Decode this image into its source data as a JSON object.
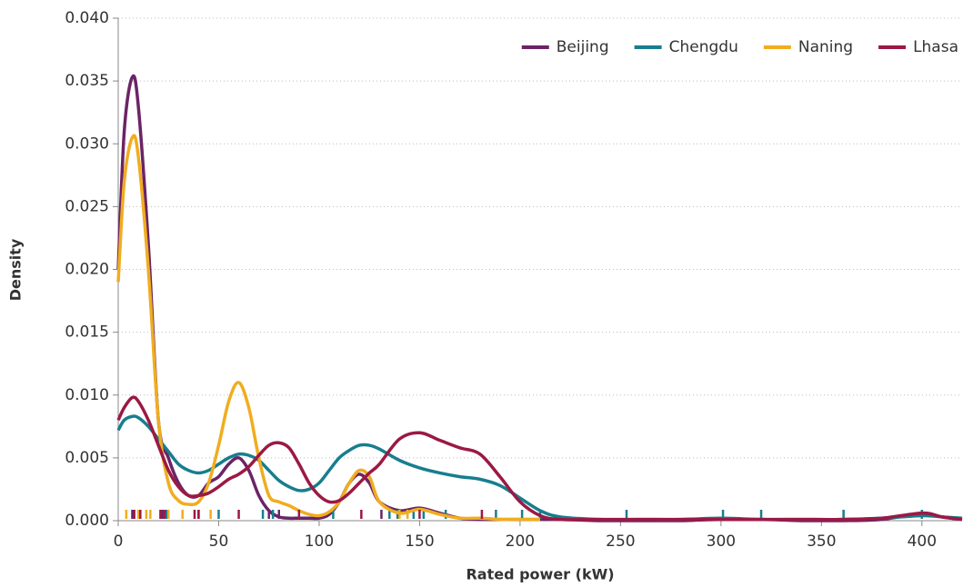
{
  "chart_data": {
    "type": "line",
    "xlabel": "Rated power (kW)",
    "ylabel": "Density",
    "xlim": [
      0,
      420
    ],
    "ylim": [
      0,
      0.04
    ],
    "xticks": [
      0,
      50,
      100,
      150,
      200,
      250,
      300,
      350,
      400
    ],
    "yticks": [
      {
        "value": 0,
        "label": "0.000"
      },
      {
        "value": 0.005,
        "label": "0.005"
      },
      {
        "value": 0.01,
        "label": "0.010"
      },
      {
        "value": 0.015,
        "label": "0.015"
      },
      {
        "value": 0.02,
        "label": "0.020"
      },
      {
        "value": 0.025,
        "label": "0.025"
      },
      {
        "value": 0.03,
        "label": "0.030"
      },
      {
        "value": 0.035,
        "label": "0.035"
      },
      {
        "value": 0.04,
        "label": "0.040"
      }
    ],
    "grid": true,
    "legend": "upper right",
    "x": [
      0,
      3,
      7,
      10,
      15,
      20,
      25,
      30,
      35,
      40,
      45,
      50,
      55,
      60,
      65,
      70,
      75,
      80,
      85,
      90,
      95,
      100,
      105,
      110,
      115,
      120,
      125,
      130,
      140,
      150,
      160,
      170,
      180,
      190,
      200,
      210,
      220,
      240,
      260,
      280,
      300,
      320,
      340,
      360,
      380,
      400,
      410,
      420
    ],
    "series": [
      {
        "name": "Beijing",
        "color": "#6b2466",
        "values": [
          0.02,
          0.031,
          0.0353,
          0.033,
          0.022,
          0.008,
          0.005,
          0.003,
          0.002,
          0.002,
          0.003,
          0.0035,
          0.0045,
          0.005,
          0.004,
          0.002,
          0.0008,
          0.0003,
          0.0002,
          0.0002,
          0.0002,
          0.0002,
          0.0005,
          0.0015,
          0.003,
          0.0037,
          0.003,
          0.0015,
          0.0008,
          0.001,
          0.0006,
          0.0002,
          0.0001,
          0.0001,
          0.0001,
          0.0001,
          0.0001,
          0,
          0,
          0,
          0.0001,
          0.0001,
          0,
          0,
          0.0001,
          0.0006,
          0.0003,
          0.0001
        ],
        "rug": [
          7,
          22,
          40,
          75,
          80,
          131
        ]
      },
      {
        "name": "Chengdu",
        "color": "#177e8e",
        "values": [
          0.0072,
          0.008,
          0.0083,
          0.0082,
          0.0075,
          0.0065,
          0.0055,
          0.0045,
          0.004,
          0.0038,
          0.004,
          0.0045,
          0.005,
          0.0053,
          0.0052,
          0.0048,
          0.004,
          0.0032,
          0.0027,
          0.0024,
          0.0025,
          0.003,
          0.004,
          0.005,
          0.0056,
          0.006,
          0.006,
          0.0057,
          0.0048,
          0.0042,
          0.0038,
          0.0035,
          0.0033,
          0.0028,
          0.0018,
          0.0008,
          0.0003,
          0.0001,
          0.0001,
          0.0001,
          0.0002,
          0.0001,
          0.0001,
          0.0001,
          0.0002,
          0.0004,
          0.0003,
          0.0002
        ],
        "rug": [
          24,
          50,
          72,
          77,
          107,
          135,
          139,
          147,
          152,
          163,
          188,
          201,
          210,
          253,
          301,
          320,
          361,
          400
        ]
      },
      {
        "name": "Naning",
        "color": "#f0ad1f",
        "values": [
          0.019,
          0.027,
          0.0305,
          0.029,
          0.02,
          0.008,
          0.003,
          0.0016,
          0.0013,
          0.0015,
          0.003,
          0.006,
          0.0095,
          0.011,
          0.009,
          0.005,
          0.002,
          0.0015,
          0.0012,
          0.0008,
          0.0005,
          0.0004,
          0.0007,
          0.0015,
          0.003,
          0.004,
          0.0035,
          0.0015,
          0.0006,
          0.0009,
          0.0005,
          0.0002,
          0.0002,
          0.0001,
          0.0001,
          0.0001,
          null,
          null,
          null,
          null,
          null,
          null,
          null,
          null,
          null,
          null,
          null,
          null
        ],
        "rug": [
          4,
          10,
          14,
          16,
          25,
          32,
          46,
          140,
          144
        ]
      },
      {
        "name": "Lhasa",
        "color": "#9b1944",
        "values": [
          0.008,
          0.009,
          0.0098,
          0.0095,
          0.008,
          0.006,
          0.004,
          0.0027,
          0.002,
          0.002,
          0.0022,
          0.0027,
          0.0033,
          0.0037,
          0.0043,
          0.0052,
          0.006,
          0.0062,
          0.0058,
          0.0045,
          0.003,
          0.002,
          0.0015,
          0.0016,
          0.0022,
          0.003,
          0.0038,
          0.0045,
          0.0065,
          0.007,
          0.0064,
          0.0058,
          0.0053,
          0.0035,
          0.0015,
          0.0004,
          0.0001,
          0.0001,
          0.0001,
          0.0001,
          0.0001,
          0.0001,
          0.0001,
          0.0001,
          0.0002,
          0.0006,
          0.0003,
          0.0001
        ],
        "rug": [
          8,
          11,
          21,
          23,
          38,
          40,
          60,
          90,
          121,
          150,
          181
        ]
      }
    ]
  }
}
